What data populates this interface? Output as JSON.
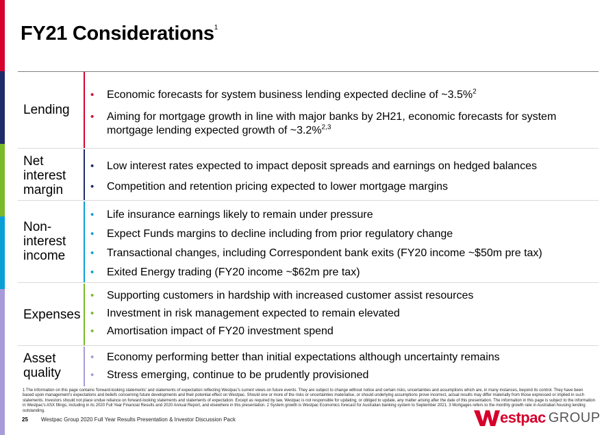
{
  "colors": {
    "red": "#d5002b",
    "navy": "#1f2b6b",
    "cyan": "#0aa0d6",
    "green": "#7ab929",
    "lilac": "#a89bd8"
  },
  "title": "FY21 Considerations",
  "title_sup": "1",
  "sections": [
    {
      "label": "Lending",
      "color": "red",
      "bullets": [
        {
          "text": "Economic forecasts for system business lending expected decline of ~3.5%",
          "sup": "2"
        },
        {
          "text": "Aiming for mortgage growth in line with major banks by 2H21, economic forecasts for system mortgage lending expected growth of ~3.2%",
          "sup": "2,3"
        }
      ]
    },
    {
      "label": "Net interest margin",
      "color": "navy",
      "bullets": [
        {
          "text": "Low interest rates expected to impact deposit spreads and earnings on hedged balances",
          "sup": ""
        },
        {
          "text": "Competition and retention pricing expected to lower mortgage margins",
          "sup": ""
        }
      ]
    },
    {
      "label": "Non-interest income",
      "color": "cyan",
      "bullets": [
        {
          "text": "Life insurance earnings likely to remain under pressure",
          "sup": ""
        },
        {
          "text": "Expect Funds margins to decline including from prior regulatory change",
          "sup": ""
        },
        {
          "text": "Transactional changes, including Correspondent bank exits (FY20 income ~$50m pre tax)",
          "sup": ""
        },
        {
          "text": "Exited Energy trading (FY20 income ~$62m pre tax)",
          "sup": ""
        }
      ]
    },
    {
      "label": "Expenses",
      "color": "green",
      "bullets": [
        {
          "text": "Supporting customers in hardship with increased customer assist resources",
          "sup": ""
        },
        {
          "text": "Investment in risk management expected to remain elevated",
          "sup": ""
        },
        {
          "text": "Amortisation impact of FY20 investment spend",
          "sup": ""
        }
      ]
    },
    {
      "label": "Asset quality",
      "color": "lilac",
      "bullets": [
        {
          "text": "Economy performing better than initial expectations although uncertainty remains",
          "sup": ""
        },
        {
          "text": "Stress emerging, continue to be prudently provisioned",
          "sup": ""
        }
      ]
    }
  ],
  "footnote": "1 The information on this page contains 'forward-looking statements' and statements of expectation reflecting Westpac's current views on future events. They are subject to change without notice and certain risks, uncertainties and assumptions which are, in many instances, beyond its control. They have been based upon management's expectations and beliefs concerning future developments and their potential effect on Westpac. Should one or more of the risks or uncertainties materialise, or should underlying assumptions prove incorrect, actual results may differ materially from those expressed or implied in such statements. Investors should not place undue reliance on forward-looking statements and statements of expectation. Except as required by law, Westpac is not responsible for updating, or obliged to update, any matter arising after the date of this presentation. The information in this page is subject to the information in Westpac's ASX filings, including in its 2020 Full Year Financial Results and 2020 Annual Report, and elsewhere in this presentation. 2 System growth is Westpac Economics forecast for Australian banking system to September 2021. 3 Mortgages refers to the monthly growth rate in Australian housing lending outstanding.",
  "footer": {
    "page_number": "25",
    "text": "Westpac Group 2020 Full Year Results Presentation & Investor Discussion Pack"
  },
  "logo": {
    "word": "estpac",
    "group": "GROUP",
    "icon": "westpac-w-logo"
  }
}
